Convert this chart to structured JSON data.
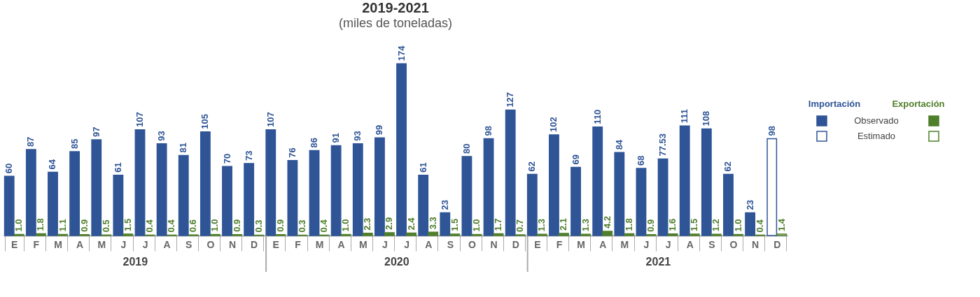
{
  "chart_data": {
    "type": "bar",
    "title": "2019-2021",
    "subtitle": "(miles de toneladas)",
    "categories": [
      "E",
      "F",
      "M",
      "A",
      "M",
      "J",
      "J",
      "A",
      "S",
      "O",
      "N",
      "D",
      "E",
      "F",
      "M",
      "A",
      "M",
      "J",
      "J",
      "A",
      "S",
      "O",
      "N",
      "D",
      "E",
      "F",
      "M",
      "A",
      "M",
      "J",
      "J",
      "A",
      "S",
      "O",
      "N",
      "D"
    ],
    "series": [
      {
        "name": "Importación",
        "color": "#2f5597",
        "values": [
          60,
          87,
          64,
          85,
          97,
          61,
          107,
          93,
          81,
          105,
          70,
          73,
          107,
          76,
          86,
          91,
          93,
          99,
          174,
          61,
          23,
          80,
          98,
          127,
          62,
          102,
          69,
          110,
          84,
          68,
          77.53,
          111,
          108,
          62,
          23,
          98
        ],
        "value_labels": [
          "60",
          "87",
          "64",
          "85",
          "97",
          "61",
          "107",
          "93",
          "81",
          "105",
          "70",
          "73",
          "107",
          "76",
          "86",
          "91",
          "93",
          "99",
          "174",
          "61",
          "23",
          "80",
          "98",
          "127",
          "62",
          "102",
          "69",
          "110",
          "84",
          "68",
          "77.53",
          "111",
          "108",
          "62",
          "23",
          "98"
        ],
        "colors": [
          "#2f5597",
          "#2f5597",
          "#2f5597",
          "#2f5597",
          "#2f5597",
          "#2f5597",
          "#2f5597",
          "#2f5597",
          "#2f5597",
          "#2f5597",
          "#2f5597",
          "#2f5597",
          "#2f5597",
          "#2f5597",
          "#2f5597",
          "#2f5597",
          "#2f5597",
          "#2f5597",
          "#2f5597",
          "#2f5597",
          "#2f5597",
          "#2f5597",
          "#2f5597",
          "#2f5597",
          "#2f5597",
          "#2f5597",
          "#2f5597",
          "#2f5597",
          "#2f5597",
          "#2f5597",
          "#2f5597",
          "#2f5597",
          "#2f5597",
          "#2f5597",
          "#2f5597",
          "#ffffff"
        ]
      },
      {
        "name": "Exportación",
        "color": "#4f7f2a",
        "values": [
          1.0,
          1.8,
          1.1,
          0.9,
          0.5,
          1.5,
          0.4,
          0.4,
          0.6,
          1.0,
          0.9,
          0.3,
          0.9,
          0.3,
          0.4,
          1.0,
          2.3,
          2.9,
          2.4,
          3.3,
          1.5,
          1.0,
          1.7,
          0.7,
          1.3,
          2.1,
          1.3,
          4.2,
          1.8,
          0.9,
          1.6,
          1.5,
          1.2,
          1.0,
          0.4,
          1.4
        ],
        "value_labels": [
          "1.0",
          "1.8",
          "1.1",
          "0.9",
          "0.5",
          "1.5",
          "0.4",
          "0.4",
          "0.6",
          "1.0",
          "0.9",
          "0.3",
          "0.9",
          "0.3",
          "0.4",
          "1.0",
          "2.3",
          "2.9",
          "2.4",
          "3.3",
          "1.5",
          "1.0",
          "1.7",
          "0.7",
          "1.3",
          "2.1",
          "1.3",
          "4.2",
          "1.8",
          "0.9",
          "1.6",
          "1.5",
          "1.2",
          "1.0",
          "0.4",
          "1.4"
        ],
        "colors": [
          "#4f7f2a",
          "#4f7f2a",
          "#4f7f2a",
          "#4f7f2a",
          "#4f7f2a",
          "#4f7f2a",
          "#4f7f2a",
          "#4f7f2a",
          "#4f7f2a",
          "#4f7f2a",
          "#4f7f2a",
          "#4f7f2a",
          "#4f7f2a",
          "#4f7f2a",
          "#4f7f2a",
          "#4f7f2a",
          "#4f7f2a",
          "#4f7f2a",
          "#4f7f2a",
          "#4f7f2a",
          "#4f7f2a",
          "#4f7f2a",
          "#4f7f2a",
          "#4f7f2a",
          "#4f7f2a",
          "#4f7f2a",
          "#4f7f2a",
          "#4f7f2a",
          "#4f7f2a",
          "#4f7f2a",
          "#4f7f2a",
          "#4f7f2a",
          "#4f7f2a",
          "#4f7f2a",
          "#4f7f2a",
          "#ffffff"
        ]
      }
    ],
    "annotations": [
      "Observado",
      "Estimado",
      "2019",
      "2020",
      "2021"
    ],
    "legend": "right"
  }
}
